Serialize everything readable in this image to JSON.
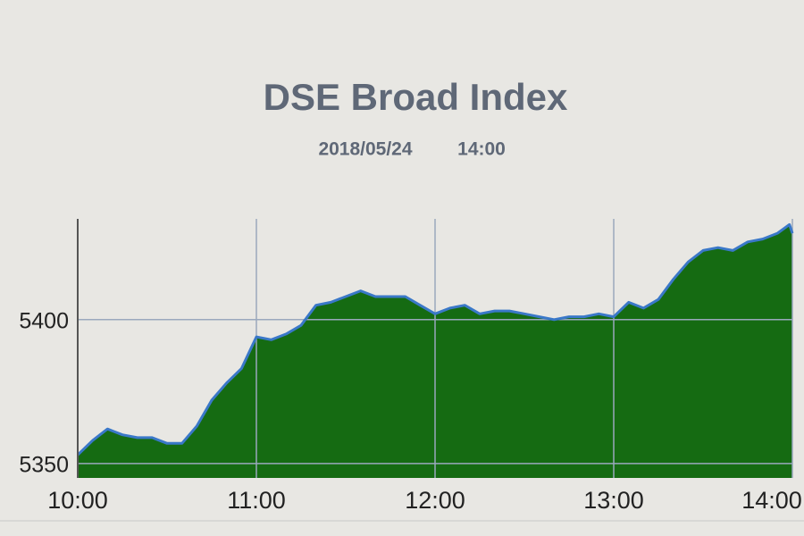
{
  "chart_data": {
    "type": "area",
    "title": "DSE Broad Index",
    "date": "2018/05/24",
    "time": "14:00",
    "x": [
      "10:00",
      "10:05",
      "10:10",
      "10:15",
      "10:20",
      "10:25",
      "10:30",
      "10:35",
      "10:40",
      "10:45",
      "10:50",
      "10:55",
      "11:00",
      "11:05",
      "11:10",
      "11:15",
      "11:20",
      "11:25",
      "11:30",
      "11:35",
      "11:40",
      "11:45",
      "11:50",
      "11:55",
      "12:00",
      "12:05",
      "12:10",
      "12:15",
      "12:20",
      "12:25",
      "12:30",
      "12:35",
      "12:40",
      "12:45",
      "12:50",
      "12:55",
      "13:00",
      "13:05",
      "13:10",
      "13:15",
      "13:20",
      "13:25",
      "13:30",
      "13:35",
      "13:40",
      "13:45",
      "13:50",
      "13:55",
      "13:59",
      "14:00"
    ],
    "series": [
      {
        "name": "DSE Broad Index",
        "color": "#3a78c8",
        "fill": "#156b12",
        "values": [
          5353,
          5358,
          5362,
          5360,
          5359,
          5359,
          5357,
          5357,
          5363,
          5372,
          5378,
          5383,
          5394,
          5393,
          5395,
          5398,
          5405,
          5406,
          5408,
          5410,
          5408,
          5408,
          5408,
          5405,
          5402,
          5404,
          5405,
          5402,
          5403,
          5403,
          5402,
          5401,
          5400,
          5401,
          5401,
          5402,
          5401,
          5406,
          5404,
          5407,
          5414,
          5420,
          5424,
          5425,
          5424,
          5427,
          5428,
          5430,
          5433,
          5430
        ]
      }
    ],
    "xlim": [
      "10:00",
      "14:00"
    ],
    "xticks": [
      "10:00",
      "11:00",
      "12:00",
      "13:00",
      "14:00"
    ],
    "ylim": [
      5345,
      5435
    ],
    "yticks": [
      5350,
      5400
    ],
    "grid": true
  }
}
